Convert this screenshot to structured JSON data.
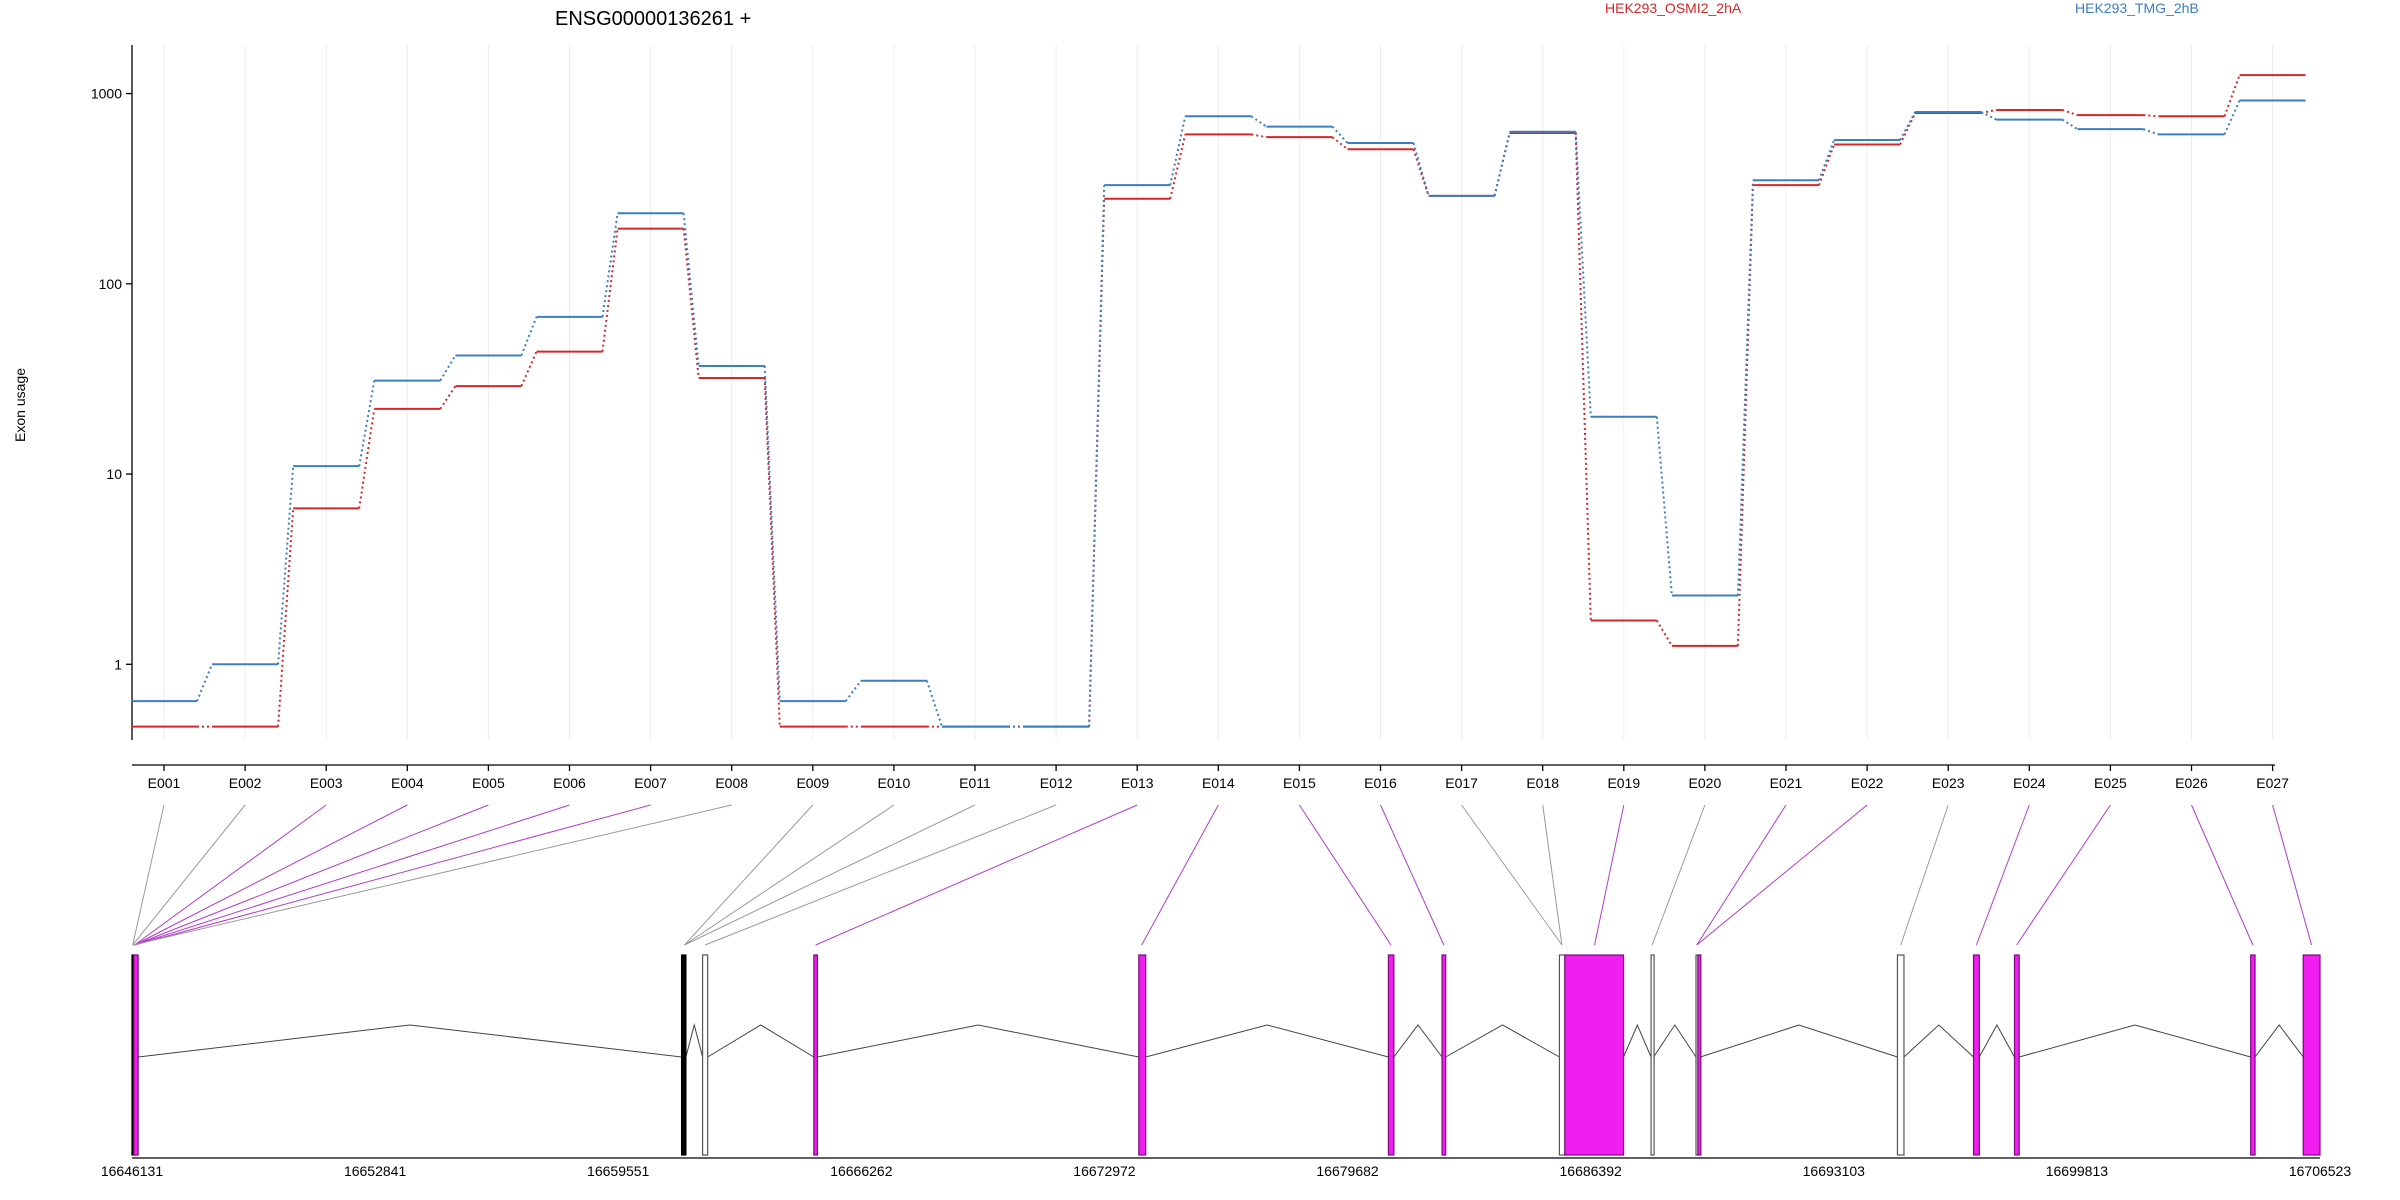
{
  "title": "ENSG00000136261 +",
  "legend": [
    {
      "name": "HEK293_OSMI2_2hA",
      "color": "#d62728"
    },
    {
      "name": "HEK293_TMG_2hB",
      "color": "#3c7fc0"
    }
  ],
  "chart_data": {
    "type": "line",
    "ylabel": "Exon usage",
    "yscale": "log",
    "ylim": [
      0.4,
      1800
    ],
    "yticks": [
      "1",
      "10",
      "100",
      "1000"
    ],
    "categories": [
      "E001",
      "E002",
      "E003",
      "E004",
      "E005",
      "E006",
      "E007",
      "E008",
      "E009",
      "E010",
      "E011",
      "E012",
      "E013",
      "E014",
      "E015",
      "E016",
      "E017",
      "E018",
      "E019",
      "E020",
      "E021",
      "E022",
      "E023",
      "E024",
      "E025",
      "E026",
      "E027"
    ],
    "series": [
      {
        "name": "HEK293_OSMI2_2hA",
        "color": "#d62728",
        "values": [
          0.47,
          0.47,
          6.6,
          22,
          29,
          44,
          195,
          32,
          0.47,
          0.47,
          0.47,
          0.47,
          280,
          610,
          590,
          510,
          290,
          620,
          1.7,
          1.25,
          330,
          540,
          790,
          820,
          770,
          760,
          1250
        ]
      },
      {
        "name": "HEK293_TMG_2hB",
        "color": "#3c7fc0",
        "values": [
          0.64,
          1.0,
          11,
          31,
          42,
          67,
          235,
          37,
          0.64,
          0.82,
          0.47,
          0.47,
          330,
          760,
          670,
          550,
          290,
          630,
          20,
          2.3,
          350,
          570,
          800,
          730,
          650,
          610,
          920
        ]
      }
    ],
    "exon_types": [
      "black",
      "black",
      "magenta",
      "magenta",
      "magenta",
      "magenta",
      "magenta",
      "black",
      "black",
      "black",
      "black",
      "black",
      "magenta",
      "magenta",
      "magenta",
      "magenta",
      "black",
      "black",
      "magenta",
      "black",
      "magenta",
      "magenta",
      "black",
      "magenta",
      "magenta",
      "magenta",
      "magenta"
    ],
    "genomic_axis": {
      "start": 16646131,
      "end": 16706523,
      "tick_labels": [
        "16646131",
        "16652841",
        "16659551",
        "16666262",
        "16672972",
        "16679682",
        "16686392",
        "16693103",
        "16699813",
        "16706523"
      ]
    },
    "exons": [
      {
        "start": 16646131,
        "end": 16646180,
        "fill": "black"
      },
      {
        "start": 16646180,
        "end": 16646300,
        "fill": "magenta"
      },
      {
        "start": 16661300,
        "end": 16661420,
        "fill": "black"
      },
      {
        "start": 16661880,
        "end": 16662020,
        "fill": "white"
      },
      {
        "start": 16664950,
        "end": 16665050,
        "fill": "magenta"
      },
      {
        "start": 16673920,
        "end": 16674110,
        "fill": "magenta"
      },
      {
        "start": 16680810,
        "end": 16680960,
        "fill": "magenta"
      },
      {
        "start": 16682290,
        "end": 16682390,
        "fill": "magenta"
      },
      {
        "start": 16685530,
        "end": 16685680,
        "fill": "white"
      },
      {
        "start": 16685680,
        "end": 16687300,
        "fill": "magenta"
      },
      {
        "start": 16688060,
        "end": 16688130,
        "fill": "white"
      },
      {
        "start": 16689300,
        "end": 16689350,
        "fill": "white"
      },
      {
        "start": 16689350,
        "end": 16689420,
        "fill": "magenta"
      },
      {
        "start": 16694860,
        "end": 16695040,
        "fill": "white"
      },
      {
        "start": 16696960,
        "end": 16697120,
        "fill": "magenta"
      },
      {
        "start": 16698090,
        "end": 16698220,
        "fill": "magenta"
      },
      {
        "start": 16704610,
        "end": 16704730,
        "fill": "magenta"
      },
      {
        "start": 16706060,
        "end": 16706523,
        "fill": "magenta"
      }
    ],
    "exon_mapping": [
      16646150,
      16646150,
      16646200,
      16646200,
      16646200,
      16646200,
      16646200,
      16646150,
      16661380,
      16661380,
      16661380,
      16661950,
      16665000,
      16674000,
      16680880,
      16682340,
      16685600,
      16685600,
      16686500,
      16688090,
      16689320,
      16689320,
      16694950,
      16697040,
      16698150,
      16704670,
      16706290
    ]
  }
}
